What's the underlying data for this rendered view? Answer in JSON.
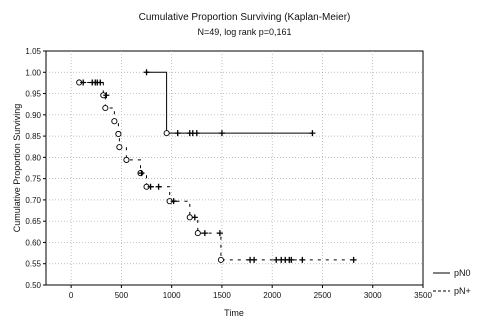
{
  "chart_data": {
    "type": "line",
    "title": "Cumulative Proportion Surviving (Kaplan-Meier)",
    "subtitle": "N=49, log rank p=0,161",
    "xlabel": "Time",
    "ylabel": "Cumulative Proportion Surviving",
    "xlim": [
      -250,
      3500
    ],
    "ylim": [
      0.5,
      1.05
    ],
    "xticks": [
      0,
      500,
      1000,
      1500,
      2000,
      2500,
      3000,
      3500
    ],
    "yticks": [
      0.5,
      0.55,
      0.6,
      0.65,
      0.7,
      0.75,
      0.8,
      0.85,
      0.9,
      0.95,
      1.0,
      1.05
    ],
    "grid": true,
    "legend_position": "right-bottom",
    "series": [
      {
        "name": "pN0",
        "line_style": "solid",
        "steps": [
          [
            750,
            1.0
          ],
          [
            950,
            1.0
          ],
          [
            950,
            0.857
          ],
          [
            2400,
            0.857
          ]
        ],
        "events": [
          [
            950,
            0.857
          ]
        ],
        "censored": [
          [
            750,
            1.0
          ],
          [
            1060,
            0.857
          ],
          [
            1180,
            0.857
          ],
          [
            1210,
            0.857
          ],
          [
            1250,
            0.857
          ],
          [
            1500,
            0.857
          ],
          [
            2400,
            0.857
          ]
        ]
      },
      {
        "name": "pN+",
        "line_style": "dashed",
        "steps": [
          [
            80,
            0.976
          ],
          [
            320,
            0.976
          ],
          [
            320,
            0.946
          ],
          [
            340,
            0.946
          ],
          [
            340,
            0.916
          ],
          [
            430,
            0.916
          ],
          [
            430,
            0.885
          ],
          [
            470,
            0.885
          ],
          [
            470,
            0.855
          ],
          [
            480,
            0.855
          ],
          [
            480,
            0.824
          ],
          [
            550,
            0.824
          ],
          [
            550,
            0.794
          ],
          [
            690,
            0.794
          ],
          [
            690,
            0.763
          ],
          [
            750,
            0.763
          ],
          [
            750,
            0.731
          ],
          [
            980,
            0.731
          ],
          [
            980,
            0.697
          ],
          [
            1180,
            0.697
          ],
          [
            1180,
            0.659
          ],
          [
            1260,
            0.659
          ],
          [
            1260,
            0.622
          ],
          [
            1490,
            0.622
          ],
          [
            1490,
            0.559
          ],
          [
            2810,
            0.559
          ]
        ],
        "events": [
          [
            80,
            0.976
          ],
          [
            320,
            0.946
          ],
          [
            340,
            0.916
          ],
          [
            430,
            0.885
          ],
          [
            470,
            0.855
          ],
          [
            480,
            0.824
          ],
          [
            550,
            0.794
          ],
          [
            690,
            0.763
          ],
          [
            750,
            0.731
          ],
          [
            980,
            0.697
          ],
          [
            1180,
            0.659
          ],
          [
            1260,
            0.622
          ],
          [
            1490,
            0.559
          ]
        ],
        "censored": [
          [
            120,
            0.976
          ],
          [
            210,
            0.976
          ],
          [
            240,
            0.976
          ],
          [
            260,
            0.976
          ],
          [
            290,
            0.976
          ],
          [
            350,
            0.946
          ],
          [
            700,
            0.763
          ],
          [
            790,
            0.731
          ],
          [
            870,
            0.731
          ],
          [
            1020,
            0.697
          ],
          [
            1230,
            0.659
          ],
          [
            1330,
            0.622
          ],
          [
            1480,
            0.622
          ],
          [
            1780,
            0.559
          ],
          [
            1820,
            0.559
          ],
          [
            2040,
            0.559
          ],
          [
            2090,
            0.559
          ],
          [
            2130,
            0.559
          ],
          [
            2170,
            0.559
          ],
          [
            2190,
            0.559
          ],
          [
            2300,
            0.559
          ],
          [
            2810,
            0.559
          ]
        ]
      }
    ]
  }
}
